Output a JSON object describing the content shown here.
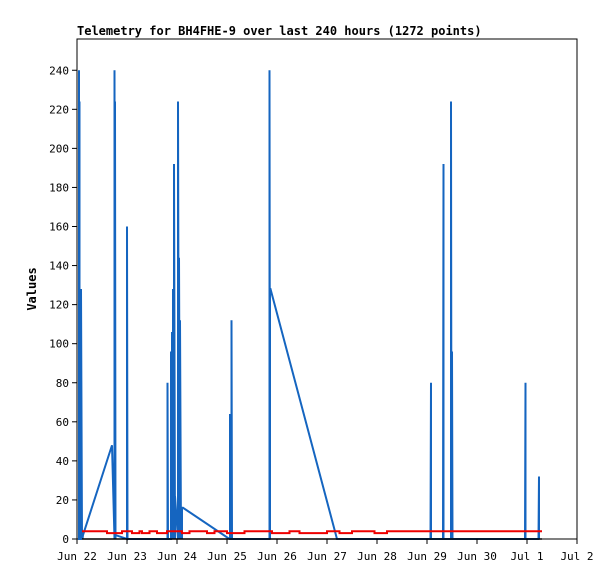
{
  "chart_data": {
    "type": "line",
    "title": "Telemetry for BH4FHE-9 over last 240 hours (1272 points)",
    "xlabel": "",
    "ylabel": "Values",
    "x_tick_labels": [
      "Jun 22",
      "Jun 23",
      "Jun 24",
      "Jun 25",
      "Jun 26",
      "Jun 27",
      "Jun 28",
      "Jun 29",
      "Jun 30",
      "Jul 1",
      "Jul 2"
    ],
    "xlim": [
      0,
      10
    ],
    "ylim": [
      0,
      256
    ],
    "y_ticks": [
      0,
      20,
      40,
      60,
      80,
      100,
      120,
      140,
      160,
      180,
      200,
      220,
      240
    ],
    "grid": false,
    "legend": "none",
    "colors": {
      "blue_series": "#1565c0",
      "red_series": "#ee0000",
      "black_series": "#000000"
    },
    "series": [
      {
        "color": "#1565c0",
        "x": [
          0.04,
          0.04,
          0.04,
          0.05,
          0.05,
          0.05,
          0.08,
          0.08,
          0.1,
          0.11,
          0.11,
          0.12,
          0.7,
          0.75,
          0.75,
          0.76,
          0.76,
          0.77,
          0.77,
          1.0,
          1.0,
          1.01,
          1.81,
          1.81,
          1.82,
          1.88,
          1.88,
          1.9,
          1.9,
          1.92,
          1.92,
          1.94,
          1.94,
          1.96,
          1.96,
          2.02,
          2.02,
          2.04,
          2.04,
          2.06,
          2.06,
          2.08,
          2.08,
          2.1,
          2.1,
          2.12,
          3.05,
          3.06,
          3.06,
          3.09,
          3.09,
          3.1,
          3.85,
          3.85,
          3.86,
          3.86,
          3.87,
          5.2,
          5.22,
          7.07,
          7.08,
          7.08,
          7.09,
          7.32,
          7.33,
          7.33,
          7.34,
          7.48,
          7.48,
          7.49,
          7.5,
          7.5,
          7.51,
          8.96,
          8.97,
          8.97,
          8.98,
          9.23,
          9.24,
          9.24,
          9.25
        ],
        "y": [
          0,
          240,
          0,
          0,
          224,
          0,
          0,
          128,
          0,
          2,
          0,
          2,
          48,
          0,
          240,
          0,
          224,
          0,
          2,
          0,
          160,
          0,
          0,
          80,
          0,
          0,
          96,
          0,
          106,
          0,
          128,
          0,
          192,
          0,
          22,
          0,
          224,
          0,
          144,
          0,
          112,
          0,
          16,
          0,
          16,
          16,
          0,
          0,
          64,
          0,
          112,
          0,
          0,
          240,
          0,
          128,
          128,
          0,
          0,
          0,
          80,
          0,
          0,
          0,
          192,
          0,
          0,
          0,
          224,
          0,
          0,
          96,
          0,
          0,
          80,
          0,
          0,
          0,
          32,
          0,
          0
        ]
      },
      {
        "color": "#ee0000",
        "x": [
          0.1,
          0.6,
          0.6,
          0.9,
          0.9,
          1.1,
          1.1,
          1.25,
          1.25,
          1.3,
          1.3,
          1.45,
          1.45,
          1.6,
          1.6,
          1.8,
          1.8,
          2.1,
          2.1,
          2.25,
          2.25,
          2.6,
          2.6,
          2.75,
          2.75,
          3.0,
          3.0,
          3.35,
          3.35,
          3.9,
          3.9,
          4.25,
          4.25,
          4.45,
          4.45,
          5.0,
          5.0,
          5.25,
          5.25,
          5.5,
          5.5,
          5.95,
          5.95,
          6.2,
          6.2,
          9.3
        ],
        "y": [
          4,
          4,
          3,
          3,
          4,
          4,
          3,
          3,
          4,
          4,
          3,
          3,
          4,
          4,
          3,
          3,
          4,
          4,
          3,
          3,
          4,
          4,
          3,
          3,
          4,
          4,
          3,
          3,
          4,
          4,
          3,
          3,
          4,
          4,
          3,
          3,
          4,
          4,
          3,
          3,
          4,
          4,
          3,
          3,
          4,
          4
        ]
      },
      {
        "color": "#000000",
        "x": [
          0.1,
          9.3
        ],
        "y": [
          0,
          0
        ]
      }
    ]
  }
}
